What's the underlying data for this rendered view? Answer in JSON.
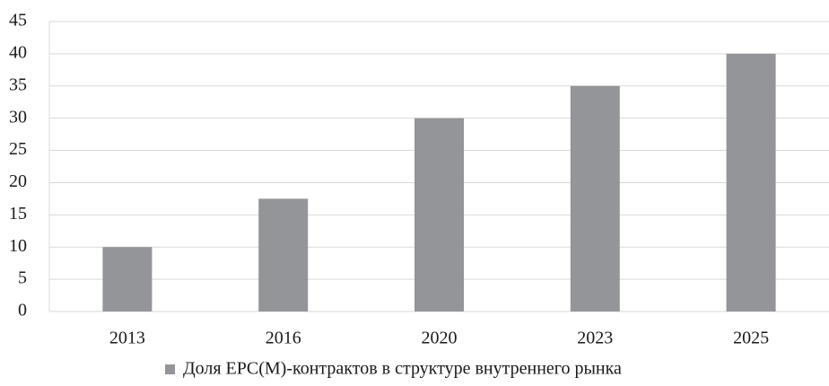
{
  "chart_data": {
    "type": "bar",
    "categories": [
      "2013",
      "2016",
      "2020",
      "2023",
      "2025"
    ],
    "series": [
      {
        "name": "Доля EPC(M)-контрактов в структуре внутреннего рынка",
        "color": "#939598",
        "values": [
          10,
          17.5,
          30,
          35,
          40
        ]
      }
    ],
    "ylim": [
      0,
      45
    ],
    "yticks": [
      0,
      5,
      10,
      15,
      20,
      25,
      30,
      35,
      40,
      45
    ],
    "grid": true,
    "legend": "bottom"
  }
}
